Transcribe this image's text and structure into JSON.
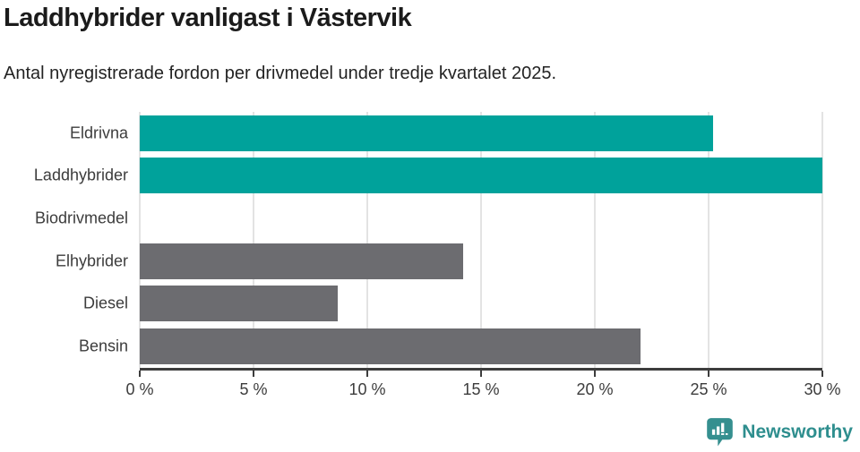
{
  "header": {
    "title": "Laddhybrider vanligast i Västervik",
    "subtitle": "Antal nyregistrerade fordon per drivmedel under tredje kvartalet 2025."
  },
  "chart_data": {
    "type": "bar",
    "orientation": "horizontal",
    "title": "Laddhybrider vanligast i Västervik",
    "subtitle": "Antal nyregistrerade fordon per drivmedel under tredje kvartalet 2025.",
    "categories": [
      "Eldrivna",
      "Laddhybrider",
      "Biodrivmedel",
      "Elhybrider",
      "Diesel",
      "Bensin"
    ],
    "values": [
      25.2,
      30,
      0,
      14.2,
      8.7,
      22
    ],
    "unit": "%",
    "xlim": [
      0,
      30
    ],
    "xticks": [
      0,
      5,
      10,
      15,
      20,
      25,
      30
    ],
    "xtick_labels": [
      "0 %",
      "5 %",
      "10 %",
      "15 %",
      "20 %",
      "25 %",
      "30 %"
    ],
    "bar_colors": [
      "#00a29b",
      "#00a29b",
      "#6c6c70",
      "#6c6c70",
      "#6c6c70",
      "#6c6c70"
    ],
    "highlight_color": "#00a29b",
    "base_color": "#6c6c70",
    "gridline_color": "#e3e3e3",
    "axis_color": "#3d3d3d",
    "grid": true,
    "legend": "none"
  },
  "footer": {
    "brand": "Newsworthy",
    "brand_color": "#2e8e8e",
    "logo_icon": "bar-chart-speech-bubble"
  }
}
